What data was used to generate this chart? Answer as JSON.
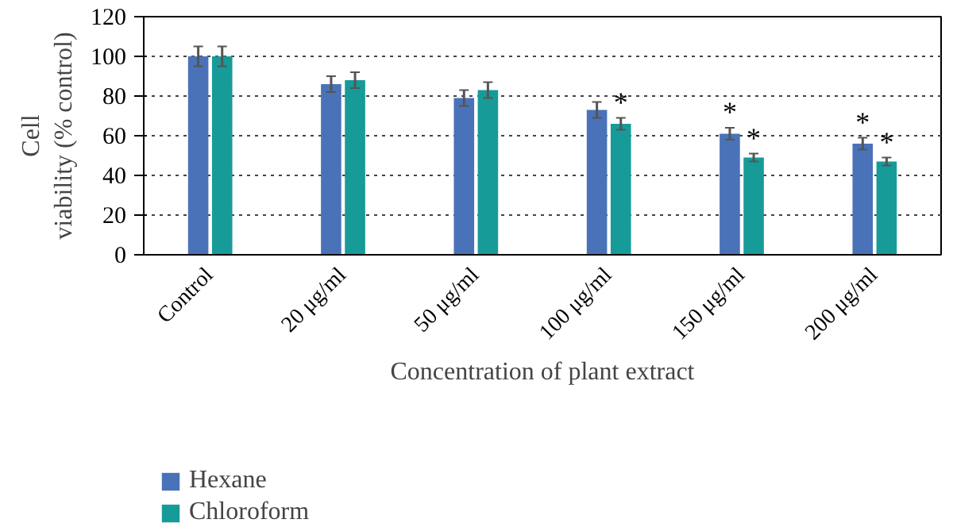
{
  "chart_data": {
    "type": "bar",
    "xlabel": "Concentration of plant extract",
    "ylabel": "Cell\nviability (% control)",
    "categories": [
      "Control",
      "20 μg/ml",
      "50 μg/ml",
      "100 μg/ml",
      "150 μg/ml",
      "200 μg/ml"
    ],
    "series": [
      {
        "name": "Hexane",
        "color": "#4a72b8",
        "values": [
          100,
          86,
          79,
          73,
          61,
          56
        ],
        "errors": [
          5,
          4,
          4,
          4,
          3,
          3
        ]
      },
      {
        "name": "Chloroform",
        "color": "#169b99",
        "values": [
          100,
          88,
          83,
          66,
          49,
          47
        ],
        "errors": [
          5,
          4,
          4,
          3,
          2,
          2
        ]
      }
    ],
    "ylim": [
      0,
      120
    ],
    "yticks": [
      0,
      20,
      40,
      60,
      80,
      100,
      120
    ],
    "grid": "y",
    "legend": "bottom",
    "annotations": [
      {
        "text": "*",
        "x": "100 μg/ml",
        "y": 69
      },
      {
        "text": "*",
        "x": "150 μg/ml",
        "y": 64
      },
      {
        "text": "*",
        "x": "150 μg/ml",
        "y": 51
      },
      {
        "text": "*",
        "x": "200 μg/ml",
        "y": 59
      },
      {
        "text": "*",
        "x": "200 μg/ml",
        "y": 49
      }
    ]
  }
}
